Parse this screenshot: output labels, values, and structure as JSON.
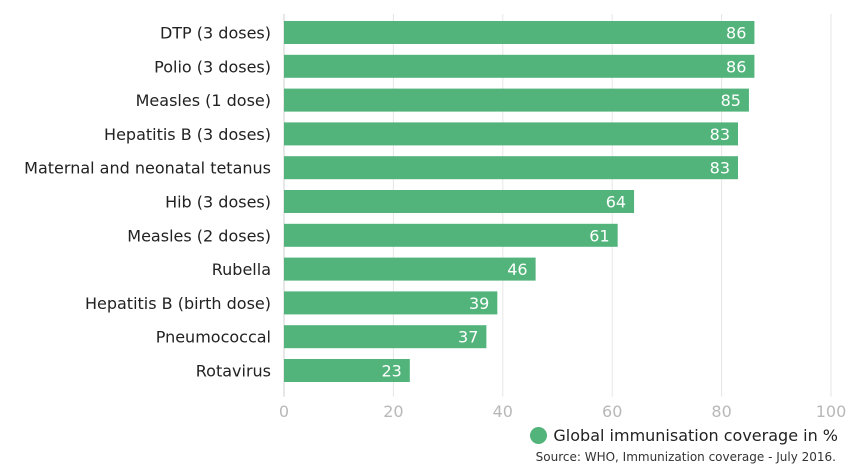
{
  "chart_data": {
    "type": "bar",
    "orientation": "horizontal",
    "categories": [
      "DTP (3 doses)",
      "Polio (3 doses)",
      "Measles (1 dose)",
      "Hepatitis B (3 doses)",
      "Maternal and neonatal tetanus",
      "Hib (3 doses)",
      "Measles (2 doses)",
      "Rubella",
      "Hepatitis B (birth dose)",
      "Pneumococcal",
      "Rotavirus"
    ],
    "series": [
      {
        "name": "Global immunisation coverage in %",
        "values": [
          86,
          86,
          85,
          83,
          83,
          64,
          61,
          46,
          39,
          37,
          23
        ]
      }
    ],
    "xlim": [
      0,
      100
    ],
    "xticks": [
      0,
      20,
      40,
      60,
      80,
      100
    ],
    "grid": true,
    "legend": "bottom-right",
    "bar_color": "#52b47b",
    "source": "Source: WHO, Immunization coverage - July 2016."
  }
}
